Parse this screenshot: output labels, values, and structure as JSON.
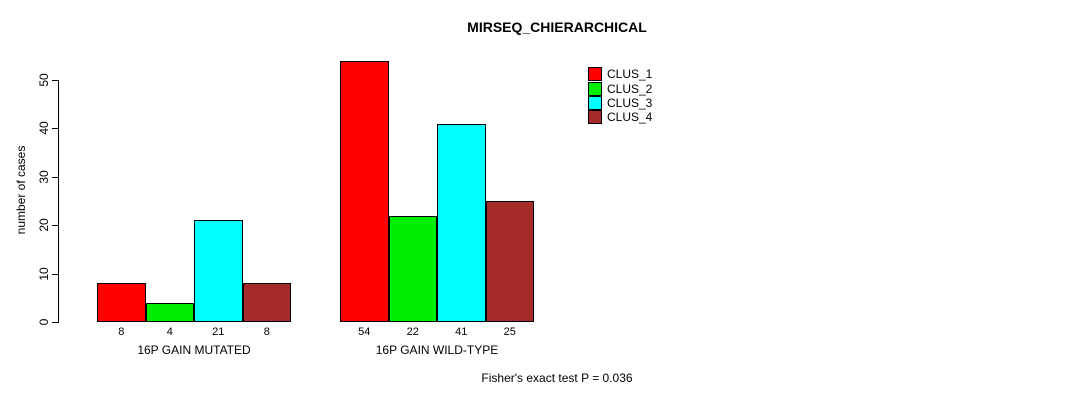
{
  "chart_data": {
    "type": "bar",
    "title": "MIRSEQ_CHIERARCHICAL",
    "ylabel": "number of cases",
    "ylim": [
      0,
      50
    ],
    "yticks": [
      0,
      10,
      20,
      30,
      40,
      50
    ],
    "categories": [
      "16P GAIN MUTATED",
      "16P GAIN WILD-TYPE"
    ],
    "series": [
      {
        "name": "CLUS_1",
        "color": "#FF0000",
        "values": [
          8,
          54
        ]
      },
      {
        "name": "CLUS_2",
        "color": "#00EE00",
        "values": [
          4,
          22
        ]
      },
      {
        "name": "CLUS_3",
        "color": "#00FFFF",
        "values": [
          21,
          41
        ]
      },
      {
        "name": "CLUS_4",
        "color": "#A52A2A",
        "values": [
          8,
          25
        ]
      }
    ],
    "bar_value_labels": [
      [
        "8",
        "4",
        "21",
        "8"
      ],
      [
        "54",
        "22",
        "41",
        "25"
      ]
    ],
    "annotation": "Fisher's exact test P = 0.036",
    "legend_position": "top-right",
    "grid": false,
    "background": "#ffffff",
    "axis_color": "#000000"
  }
}
